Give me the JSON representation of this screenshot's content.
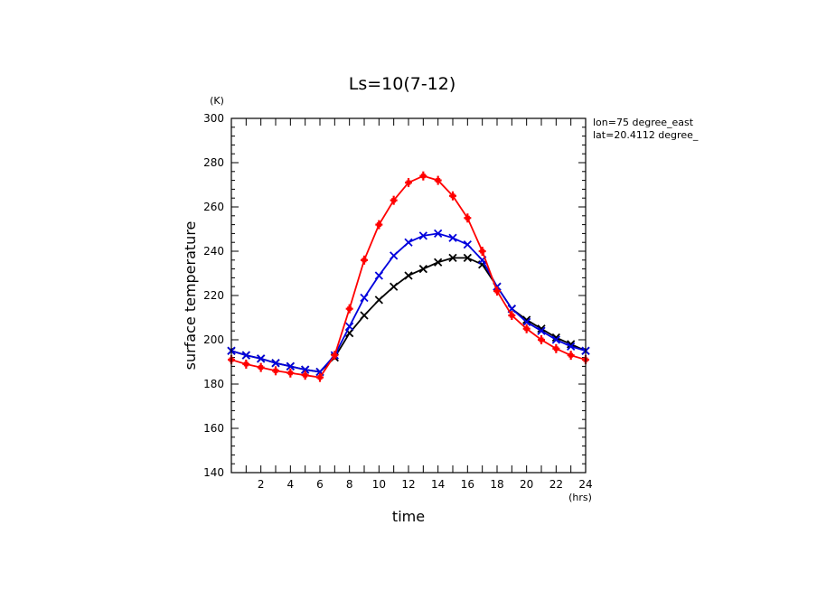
{
  "chart_data": {
    "type": "line",
    "title": "Ls=10(7-12)",
    "xlabel": "time",
    "ylabel": "surface temperature",
    "x_unit": "(hrs)",
    "y_unit": "(K)",
    "xlim": [
      0,
      24
    ],
    "ylim": [
      140,
      300
    ],
    "x_ticks": [
      2,
      4,
      6,
      8,
      10,
      12,
      14,
      16,
      18,
      20,
      22,
      24
    ],
    "y_ticks": [
      140,
      160,
      180,
      200,
      220,
      240,
      260,
      280,
      300
    ],
    "grid": false,
    "annotations": [
      "lon=75 degree_east",
      "lat=20.4112 degree_"
    ],
    "x": [
      0,
      1,
      2,
      3,
      4,
      5,
      6,
      7,
      8,
      9,
      10,
      11,
      12,
      13,
      14,
      15,
      16,
      17,
      18,
      19,
      20,
      21,
      22,
      23,
      24
    ],
    "series": [
      {
        "color": "#ff0000",
        "marker": "+",
        "values": [
          191,
          189,
          187.5,
          186,
          185,
          184,
          183,
          193,
          214,
          236,
          252,
          263,
          271,
          274,
          272,
          265,
          255,
          240,
          222,
          211,
          205,
          200,
          196,
          193,
          191
        ]
      },
      {
        "color": "#0000dd",
        "marker": "x",
        "values": [
          195,
          193,
          191.5,
          189.5,
          188,
          186.5,
          185.5,
          193,
          206,
          219,
          229,
          238,
          244,
          247,
          248,
          246,
          243,
          236,
          224,
          214,
          208,
          204,
          200,
          197,
          195
        ]
      },
      {
        "color": "#000000",
        "marker": "x",
        "values": [
          195,
          193,
          191.5,
          189.5,
          188,
          186.5,
          185.5,
          192,
          203,
          211,
          218,
          224,
          229,
          232,
          235,
          237,
          237,
          234,
          224,
          214,
          209,
          205,
          201,
          198,
          195
        ]
      }
    ]
  }
}
